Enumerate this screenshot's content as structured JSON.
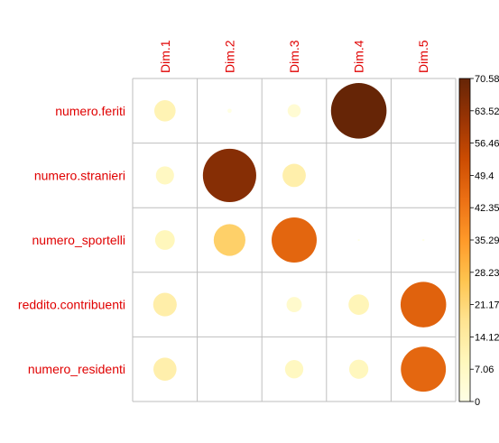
{
  "chart_data": {
    "type": "heatmap",
    "title": "",
    "rows": [
      "numero.feriti",
      "numero.stranieri",
      "numero_sportelli",
      "reddito.contribuenti",
      "numero_residenti"
    ],
    "columns": [
      "Dim.1",
      "Dim.2",
      "Dim.3",
      "Dim.4",
      "Dim.5"
    ],
    "values": [
      [
        10.4,
        0.4,
        3.9,
        70.58,
        0.0
      ],
      [
        7.5,
        65.0,
        12.4,
        0.0,
        0.0
      ],
      [
        8.9,
        23.0,
        46.5,
        0.1,
        0.1
      ],
      [
        12.7,
        0.0,
        5.3,
        9.6,
        47.5
      ],
      [
        12.2,
        0.0,
        7.7,
        8.4,
        46.3
      ]
    ],
    "scale": {
      "min": 0,
      "max": 70.58,
      "encoding": "circle size and color"
    },
    "colorbar": {
      "ticks": [
        "70.58",
        "63.52",
        "56.46",
        "49.4",
        "42.35",
        "35.29",
        "28.23",
        "21.17",
        "14.12",
        "7.06",
        "0"
      ],
      "colors": [
        "#FFFFE5",
        "#FFF7BC",
        "#FEE391",
        "#FEC44F",
        "#FE9929",
        "#EC7014",
        "#CC4C02",
        "#993404",
        "#662506"
      ]
    },
    "label_color": "#E00000",
    "grid_color": "#BEBEBE"
  }
}
